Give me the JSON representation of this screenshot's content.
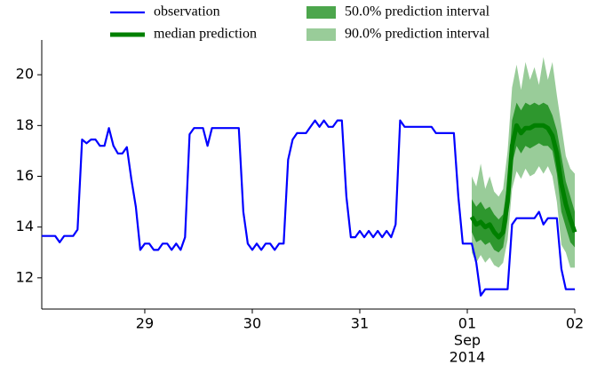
{
  "chart_data": {
    "type": "line",
    "ylim": [
      10.77,
      21.37
    ],
    "yticks": [
      12,
      14,
      16,
      18,
      20
    ],
    "xlim": [
      "2014-08-28 01:00",
      "2014-09-02 00:00"
    ],
    "xticks": [
      {
        "value": "2014-08-29 00:00",
        "label": [
          "29"
        ]
      },
      {
        "value": "2014-08-30 00:00",
        "label": [
          "30"
        ]
      },
      {
        "value": "2014-08-31 00:00",
        "label": [
          "31"
        ]
      },
      {
        "value": "2014-09-01 00:00",
        "label": [
          "01",
          "Sep",
          "2014"
        ]
      },
      {
        "value": "2014-09-02 00:00",
        "label": [
          "02"
        ]
      }
    ],
    "series": [
      {
        "name": "observation",
        "color": "#0000ff",
        "x": [
          "2014-08-28 01:00",
          "2014-08-28 02:00",
          "2014-08-28 03:00",
          "2014-08-28 04:00",
          "2014-08-28 05:00",
          "2014-08-28 06:00",
          "2014-08-28 07:00",
          "2014-08-28 08:00",
          "2014-08-28 09:00",
          "2014-08-28 10:00",
          "2014-08-28 11:00",
          "2014-08-28 12:00",
          "2014-08-28 13:00",
          "2014-08-28 14:00",
          "2014-08-28 15:00",
          "2014-08-28 16:00",
          "2014-08-28 17:00",
          "2014-08-28 18:00",
          "2014-08-28 19:00",
          "2014-08-28 20:00",
          "2014-08-28 21:00",
          "2014-08-28 22:00",
          "2014-08-28 23:00",
          "2014-08-29 00:00",
          "2014-08-29 01:00",
          "2014-08-29 02:00",
          "2014-08-29 03:00",
          "2014-08-29 04:00",
          "2014-08-29 05:00",
          "2014-08-29 06:00",
          "2014-08-29 07:00",
          "2014-08-29 08:00",
          "2014-08-29 09:00",
          "2014-08-29 10:00",
          "2014-08-29 11:00",
          "2014-08-29 12:00",
          "2014-08-29 13:00",
          "2014-08-29 14:00",
          "2014-08-29 15:00",
          "2014-08-29 16:00",
          "2014-08-29 17:00",
          "2014-08-29 18:00",
          "2014-08-29 19:00",
          "2014-08-29 20:00",
          "2014-08-29 21:00",
          "2014-08-29 22:00",
          "2014-08-29 23:00",
          "2014-08-30 00:00",
          "2014-08-30 01:00",
          "2014-08-30 02:00",
          "2014-08-30 03:00",
          "2014-08-30 04:00",
          "2014-08-30 05:00",
          "2014-08-30 06:00",
          "2014-08-30 07:00",
          "2014-08-30 08:00",
          "2014-08-30 09:00",
          "2014-08-30 10:00",
          "2014-08-30 11:00",
          "2014-08-30 12:00",
          "2014-08-30 13:00",
          "2014-08-30 14:00",
          "2014-08-30 15:00",
          "2014-08-30 16:00",
          "2014-08-30 17:00",
          "2014-08-30 18:00",
          "2014-08-30 19:00",
          "2014-08-30 20:00",
          "2014-08-30 21:00",
          "2014-08-30 22:00",
          "2014-08-30 23:00",
          "2014-08-31 00:00",
          "2014-08-31 01:00",
          "2014-08-31 02:00",
          "2014-08-31 03:00",
          "2014-08-31 04:00",
          "2014-08-31 05:00",
          "2014-08-31 06:00",
          "2014-08-31 07:00",
          "2014-08-31 08:00",
          "2014-08-31 09:00",
          "2014-08-31 10:00",
          "2014-08-31 11:00",
          "2014-08-31 12:00",
          "2014-08-31 13:00",
          "2014-08-31 14:00",
          "2014-08-31 15:00",
          "2014-08-31 16:00",
          "2014-08-31 17:00",
          "2014-08-31 18:00",
          "2014-08-31 19:00",
          "2014-08-31 20:00",
          "2014-08-31 21:00",
          "2014-08-31 22:00",
          "2014-08-31 23:00",
          "2014-09-01 00:00",
          "2014-09-01 01:00",
          "2014-09-01 02:00",
          "2014-09-01 03:00",
          "2014-09-01 04:00",
          "2014-09-01 05:00",
          "2014-09-01 06:00",
          "2014-09-01 07:00",
          "2014-09-01 08:00",
          "2014-09-01 09:00",
          "2014-09-01 10:00",
          "2014-09-01 11:00",
          "2014-09-01 12:00",
          "2014-09-01 13:00",
          "2014-09-01 14:00",
          "2014-09-01 15:00",
          "2014-09-01 16:00",
          "2014-09-01 17:00",
          "2014-09-01 18:00",
          "2014-09-01 19:00",
          "2014-09-01 20:00",
          "2014-09-01 21:00",
          "2014-09-01 22:00",
          "2014-09-01 23:00",
          "2014-09-02 00:00"
        ],
        "values": [
          13.65,
          13.65,
          13.65,
          13.65,
          13.4,
          13.65,
          13.65,
          13.65,
          13.9,
          17.45,
          17.3,
          17.45,
          17.45,
          17.2,
          17.2,
          17.9,
          17.2,
          16.9,
          16.9,
          17.15,
          15.9,
          14.8,
          13.1,
          13.35,
          13.35,
          13.1,
          13.1,
          13.35,
          13.35,
          13.1,
          13.35,
          13.1,
          13.6,
          17.65,
          17.9,
          17.9,
          17.9,
          17.2,
          17.9,
          17.9,
          17.9,
          17.9,
          17.9,
          17.9,
          17.9,
          14.6,
          13.35,
          13.1,
          13.35,
          13.1,
          13.35,
          13.35,
          13.1,
          13.35,
          13.35,
          16.65,
          17.45,
          17.7,
          17.7,
          17.7,
          17.95,
          18.2,
          17.95,
          18.2,
          17.95,
          17.95,
          18.2,
          18.2,
          15.2,
          13.6,
          13.6,
          13.85,
          13.6,
          13.85,
          13.6,
          13.85,
          13.6,
          13.85,
          13.6,
          14.1,
          18.2,
          17.95,
          17.95,
          17.95,
          17.95,
          17.95,
          17.95,
          17.95,
          17.7,
          17.7,
          17.7,
          17.7,
          17.7,
          15.2,
          13.35,
          13.35,
          13.35,
          12.6,
          11.3,
          11.55,
          11.55,
          11.55,
          11.55,
          11.55,
          11.55,
          14.1,
          14.35,
          14.35,
          14.35,
          14.35,
          14.35,
          14.6,
          14.1,
          14.35,
          14.35,
          14.35,
          12.35,
          11.55,
          11.55,
          11.55
        ]
      },
      {
        "name": "median prediction",
        "color": "#008000",
        "x": [
          "2014-09-01 01:00",
          "2014-09-01 02:00",
          "2014-09-01 03:00",
          "2014-09-01 04:00",
          "2014-09-01 05:00",
          "2014-09-01 06:00",
          "2014-09-01 07:00",
          "2014-09-01 08:00",
          "2014-09-01 09:00",
          "2014-09-01 10:00",
          "2014-09-01 11:00",
          "2014-09-01 12:00",
          "2014-09-01 13:00",
          "2014-09-01 14:00",
          "2014-09-01 15:00",
          "2014-09-01 16:00",
          "2014-09-01 17:00",
          "2014-09-01 18:00",
          "2014-09-01 19:00",
          "2014-09-01 20:00",
          "2014-09-01 21:00",
          "2014-09-01 22:00",
          "2014-09-01 23:00",
          "2014-09-02 00:00"
        ],
        "values": [
          14.4,
          14.1,
          14.2,
          14.0,
          14.1,
          13.8,
          13.6,
          13.8,
          15.0,
          17.2,
          18.0,
          17.7,
          17.9,
          17.9,
          18.0,
          18.0,
          18.0,
          17.9,
          17.6,
          16.9,
          15.7,
          14.9,
          14.3,
          13.8
        ]
      }
    ],
    "intervals": [
      {
        "name": "90.0% prediction interval",
        "color": "#008000",
        "alpha": 0.4,
        "x": [
          "2014-09-01 01:00",
          "2014-09-01 02:00",
          "2014-09-01 03:00",
          "2014-09-01 04:00",
          "2014-09-01 05:00",
          "2014-09-01 06:00",
          "2014-09-01 07:00",
          "2014-09-01 08:00",
          "2014-09-01 09:00",
          "2014-09-01 10:00",
          "2014-09-01 11:00",
          "2014-09-01 12:00",
          "2014-09-01 13:00",
          "2014-09-01 14:00",
          "2014-09-01 15:00",
          "2014-09-01 16:00",
          "2014-09-01 17:00",
          "2014-09-01 18:00",
          "2014-09-01 19:00",
          "2014-09-01 20:00",
          "2014-09-01 21:00",
          "2014-09-01 22:00",
          "2014-09-01 23:00",
          "2014-09-02 00:00"
        ],
        "lower": [
          13.0,
          12.6,
          12.9,
          12.6,
          12.8,
          12.5,
          12.4,
          12.6,
          13.5,
          15.5,
          16.2,
          15.9,
          16.3,
          16.0,
          16.1,
          16.4,
          16.1,
          16.4,
          16.0,
          15.0,
          13.3,
          13.0,
          12.4,
          12.4
        ],
        "upper": [
          16.0,
          15.6,
          16.5,
          15.5,
          16.0,
          15.4,
          15.2,
          15.5,
          17.0,
          19.5,
          20.4,
          19.4,
          20.5,
          19.8,
          20.3,
          19.6,
          20.7,
          19.8,
          20.5,
          19.2,
          18.0,
          16.8,
          16.3,
          16.1
        ]
      },
      {
        "name": "50.0% prediction interval",
        "color": "#008000",
        "alpha": 0.7,
        "x": [
          "2014-09-01 01:00",
          "2014-09-01 02:00",
          "2014-09-01 03:00",
          "2014-09-01 04:00",
          "2014-09-01 05:00",
          "2014-09-01 06:00",
          "2014-09-01 07:00",
          "2014-09-01 08:00",
          "2014-09-01 09:00",
          "2014-09-01 10:00",
          "2014-09-01 11:00",
          "2014-09-01 12:00",
          "2014-09-01 13:00",
          "2014-09-01 14:00",
          "2014-09-01 15:00",
          "2014-09-01 16:00",
          "2014-09-01 17:00",
          "2014-09-01 18:00",
          "2014-09-01 19:00",
          "2014-09-01 20:00",
          "2014-09-01 21:00",
          "2014-09-01 22:00",
          "2014-09-01 23:00",
          "2014-09-02 00:00"
        ],
        "lower": [
          13.8,
          13.4,
          13.5,
          13.3,
          13.4,
          13.1,
          13.0,
          13.2,
          14.3,
          16.5,
          17.2,
          16.9,
          17.2,
          17.1,
          17.2,
          17.3,
          17.2,
          17.2,
          17.0,
          16.1,
          14.6,
          14.0,
          13.4,
          13.2
        ],
        "upper": [
          15.1,
          14.8,
          15.0,
          14.7,
          14.8,
          14.5,
          14.3,
          14.5,
          15.8,
          18.2,
          18.9,
          18.6,
          18.9,
          18.8,
          18.9,
          18.8,
          18.9,
          18.8,
          18.4,
          17.8,
          16.8,
          15.8,
          15.2,
          14.6
        ]
      }
    ]
  }
}
